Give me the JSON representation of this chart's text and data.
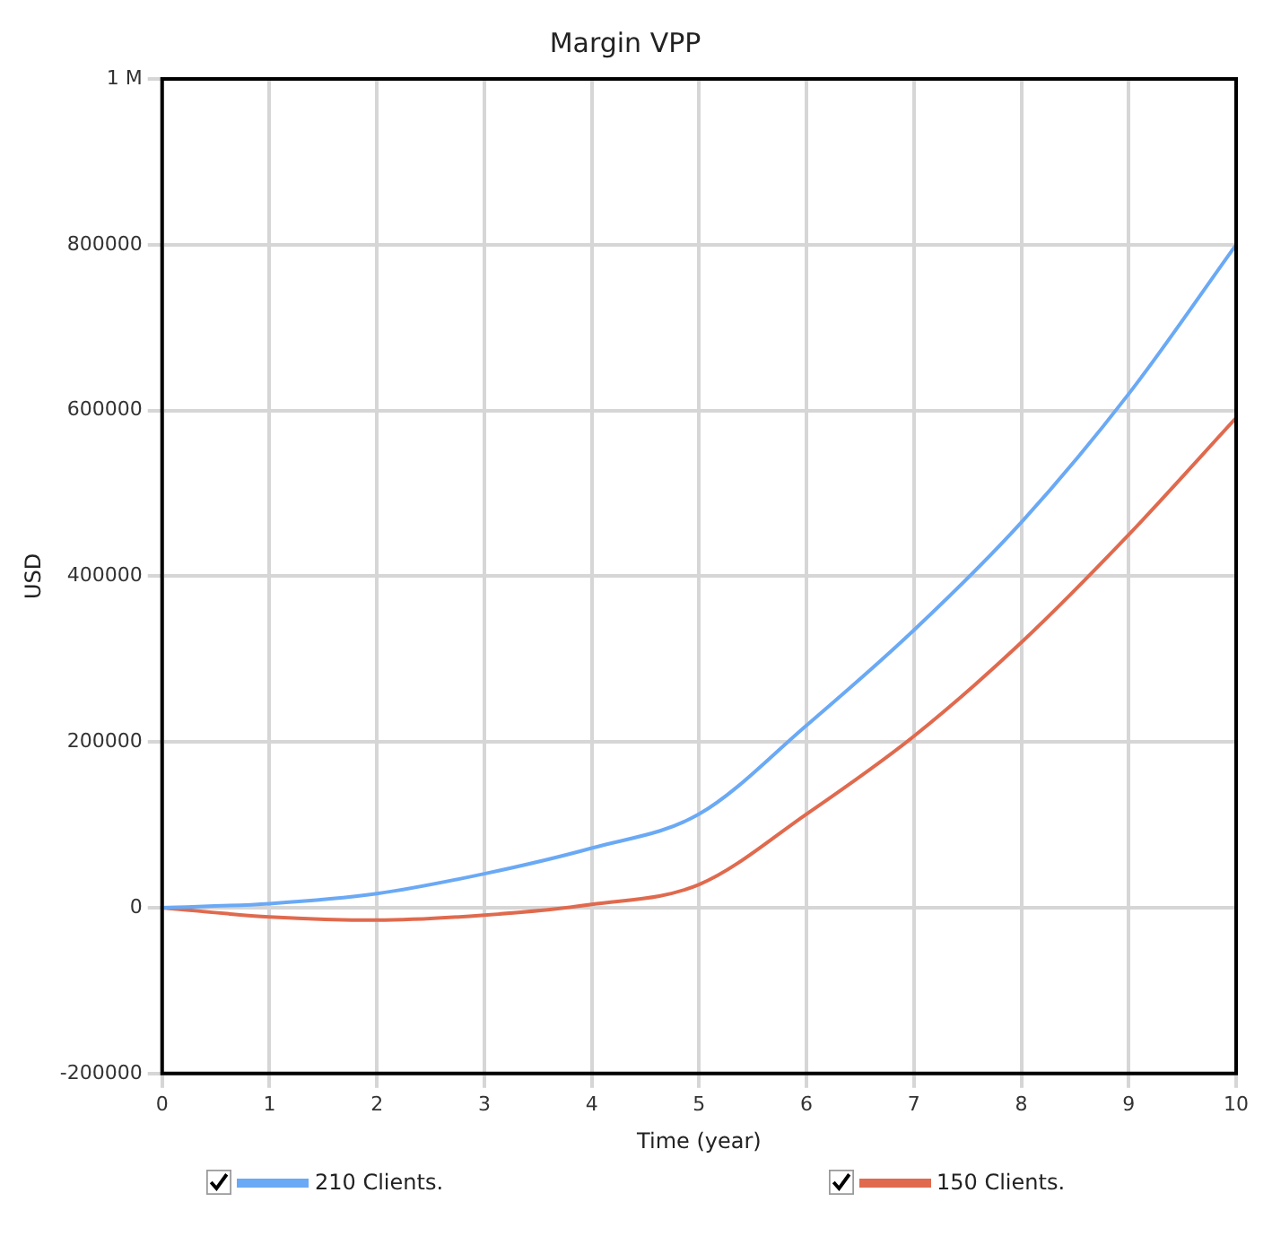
{
  "chart_data": {
    "type": "line",
    "title": "Margin VPP",
    "xlabel": "Time (year)",
    "ylabel": "USD",
    "x": [
      0,
      1,
      2,
      3,
      4,
      5,
      6,
      7,
      8,
      9,
      10
    ],
    "series": [
      {
        "name": "210 Clients.",
        "color": "#6aa9f5",
        "values": [
          0,
          5000,
          17000,
          41000,
          72000,
          113000,
          220000,
          335000,
          465000,
          620000,
          800000
        ]
      },
      {
        "name": "150 Clients.",
        "color": "#e06a4e",
        "values": [
          0,
          -11000,
          -15000,
          -9000,
          4000,
          28000,
          113000,
          207000,
          320000,
          450000,
          591000
        ]
      }
    ],
    "xlim": [
      0,
      10
    ],
    "xticks": [
      0,
      1,
      2,
      3,
      4,
      5,
      6,
      7,
      8,
      9,
      10
    ],
    "ylim": [
      -200000,
      1000000
    ],
    "yticks": [
      -200000,
      0,
      200000,
      400000,
      600000,
      800000,
      {
        "value": 1000000,
        "label": "1 M"
      }
    ],
    "grid": true,
    "legend": "bottom",
    "marker": "none",
    "line_style": "solid"
  }
}
